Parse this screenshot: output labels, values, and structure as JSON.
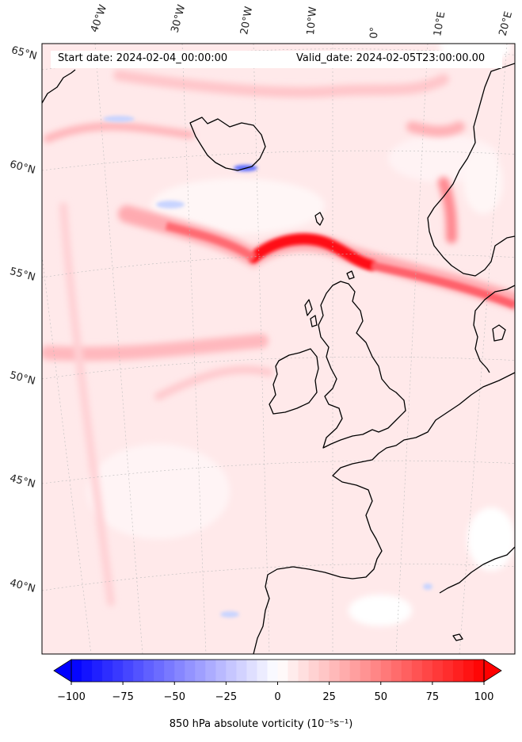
{
  "header": {
    "start_date": "Start date: 2024-02-04_00:00:00",
    "valid_date": "Valid_date: 2024-02-05T23:00:00.00"
  },
  "graticule": {
    "lon_labels": [
      "40°W",
      "30°W",
      "20°W",
      "10°W",
      "0°",
      "10°E",
      "20°E"
    ],
    "lat_labels": [
      "65°N",
      "60°N",
      "55°N",
      "50°N",
      "45°N",
      "40°N"
    ]
  },
  "colorbar": {
    "title": "850 hPa absolute vorticity (10⁻⁵s⁻¹)",
    "ticks": [
      "−100",
      "−75",
      "−50",
      "−25",
      "0",
      "25",
      "50",
      "75",
      "100"
    ],
    "range": [
      -100,
      100
    ],
    "low_color": "#0000ff",
    "mid_color": "#ffffff",
    "high_color": "#ff0000"
  },
  "colors": {
    "field_base": "#ffe9ea",
    "coastline": "#000000",
    "grid": "#bbbbbb"
  }
}
